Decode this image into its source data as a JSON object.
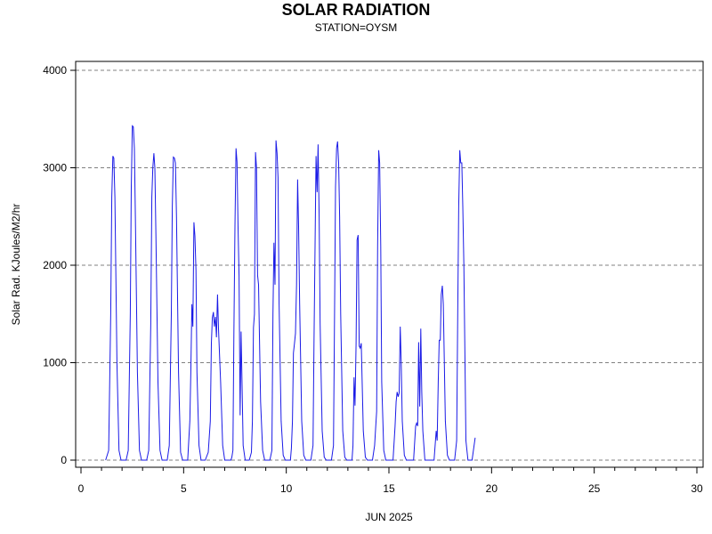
{
  "chart_data": {
    "type": "line",
    "title": "SOLAR RADIATION",
    "subtitle": "STATION=OYSM",
    "xlabel": "JUN 2025",
    "ylabel": "Solar Rad. KJoules/M2/hr",
    "xlim": [
      0,
      30
    ],
    "ylim": [
      0,
      4000
    ],
    "x_ticks": [
      0,
      5,
      10,
      15,
      20,
      25,
      30
    ],
    "y_ticks": [
      0,
      1000,
      2000,
      3000,
      4000
    ],
    "grid": "y-dashed",
    "colors": {
      "line": "#1a1ae6",
      "grid": "#808080",
      "axis": "#000000"
    },
    "series": [
      {
        "x": [
          1.2,
          1.35,
          1.45,
          1.5,
          1.55,
          1.6,
          1.65,
          1.75,
          1.85,
          1.95,
          2.05,
          2.2,
          2.3,
          2.4,
          2.45,
          2.5,
          2.55,
          2.6,
          2.65,
          2.75,
          2.85,
          2.95,
          3.05,
          3.2,
          3.3,
          3.4,
          3.45,
          3.5,
          3.55,
          3.6,
          3.65,
          3.75,
          3.85,
          3.95,
          4.05,
          4.2,
          4.3,
          4.4,
          4.45,
          4.5,
          4.55,
          4.6,
          4.65,
          4.75,
          4.85,
          4.95,
          5.05,
          5.2,
          5.3,
          5.35,
          5.4,
          5.45,
          5.5,
          5.55,
          5.6,
          5.65,
          5.75,
          5.85,
          5.95,
          6.05,
          6.2,
          6.3,
          6.35,
          6.4,
          6.45,
          6.5,
          6.55,
          6.6,
          6.65,
          6.7,
          6.8,
          6.9,
          7.0,
          7.1,
          7.2,
          7.3,
          7.35,
          7.4,
          7.45,
          7.5,
          7.55,
          7.6,
          7.65,
          7.7,
          7.75,
          7.8,
          7.9,
          8.0,
          8.1,
          8.2,
          8.3,
          8.35,
          8.4,
          8.45,
          8.5,
          8.55,
          8.6,
          8.65,
          8.75,
          8.85,
          8.95,
          9.05,
          9.2,
          9.3,
          9.35,
          9.4,
          9.45,
          9.5,
          9.55,
          9.6,
          9.65,
          9.75,
          9.85,
          9.95,
          10.05,
          10.2,
          10.25,
          10.3,
          10.35,
          10.4,
          10.45,
          10.5,
          10.55,
          10.6,
          10.65,
          10.75,
          10.85,
          10.95,
          11.05,
          11.2,
          11.3,
          11.35,
          11.4,
          11.45,
          11.5,
          11.55,
          11.6,
          11.65,
          11.75,
          11.85,
          11.95,
          12.05,
          12.2,
          12.3,
          12.35,
          12.4,
          12.45,
          12.5,
          12.55,
          12.6,
          12.65,
          12.75,
          12.85,
          12.95,
          13.05,
          13.2,
          13.25,
          13.3,
          13.35,
          13.4,
          13.45,
          13.5,
          13.55,
          13.6,
          13.65,
          13.75,
          13.85,
          13.95,
          14.05,
          14.2,
          14.3,
          14.35,
          14.4,
          14.45,
          14.5,
          14.55,
          14.6,
          14.65,
          14.75,
          14.85,
          14.95,
          15.05,
          15.2,
          15.3,
          15.35,
          15.4,
          15.45,
          15.5,
          15.55,
          15.6,
          15.65,
          15.75,
          15.85,
          15.95,
          16.05,
          16.2,
          16.3,
          16.35,
          16.4,
          16.45,
          16.5,
          16.55,
          16.6,
          16.65,
          16.75,
          16.85,
          16.95,
          17.05,
          17.2,
          17.3,
          17.35,
          17.4,
          17.45,
          17.5,
          17.55,
          17.6,
          17.65,
          17.75,
          17.85,
          17.95,
          18.05,
          18.2,
          18.3,
          18.35,
          18.4,
          18.45,
          18.5,
          18.55,
          18.6,
          18.65,
          18.75,
          18.85,
          18.95,
          19.05,
          19.2
        ],
        "values": [
          0,
          100,
          1500,
          2700,
          3120,
          3100,
          2700,
          1000,
          100,
          0,
          0,
          0,
          100,
          1500,
          2800,
          3430,
          3420,
          3200,
          2500,
          900,
          100,
          0,
          0,
          0,
          100,
          1400,
          2700,
          3000,
          3150,
          3000,
          2300,
          800,
          100,
          0,
          0,
          0,
          150,
          1500,
          2600,
          3110,
          3100,
          3050,
          2500,
          900,
          80,
          0,
          0,
          0,
          400,
          900,
          1600,
          1370,
          2440,
          2300,
          1950,
          900,
          150,
          0,
          0,
          0,
          80,
          400,
          1200,
          1460,
          1520,
          1370,
          1470,
          1260,
          1700,
          1350,
          800,
          150,
          0,
          0,
          0,
          0,
          30,
          100,
          1300,
          2400,
          3200,
          3060,
          2380,
          1890,
          460,
          1320,
          150,
          0,
          0,
          0,
          80,
          400,
          1360,
          1500,
          3160,
          3000,
          1900,
          1800,
          600,
          100,
          0,
          0,
          0,
          100,
          1500,
          2230,
          1800,
          3280,
          3150,
          2900,
          1600,
          400,
          50,
          0,
          0,
          0,
          120,
          400,
          1100,
          1200,
          1300,
          1800,
          2880,
          2400,
          1600,
          400,
          50,
          0,
          0,
          0,
          150,
          1200,
          2200,
          3120,
          2750,
          3240,
          2500,
          1400,
          300,
          30,
          0,
          0,
          0,
          150,
          1500,
          2800,
          3200,
          3270,
          3050,
          2500,
          1500,
          300,
          30,
          0,
          0,
          0,
          150,
          850,
          560,
          1200,
          2260,
          2310,
          1170,
          1150,
          1200,
          300,
          30,
          0,
          0,
          0,
          150,
          320,
          500,
          2200,
          3180,
          3050,
          2200,
          800,
          100,
          0,
          0,
          0,
          0,
          350,
          600,
          700,
          650,
          690,
          1370,
          1000,
          400,
          50,
          0,
          0,
          0,
          0,
          350,
          380,
          350,
          1210,
          550,
          1350,
          700,
          300,
          0,
          0,
          0,
          0,
          0,
          300,
          200,
          800,
          1230,
          1230,
          1700,
          1790,
          1600,
          400,
          50,
          0,
          0,
          0,
          200,
          1500,
          2600,
          3180,
          3050,
          3050,
          2600,
          2000,
          200,
          0,
          0,
          0,
          230
        ]
      }
    ]
  }
}
